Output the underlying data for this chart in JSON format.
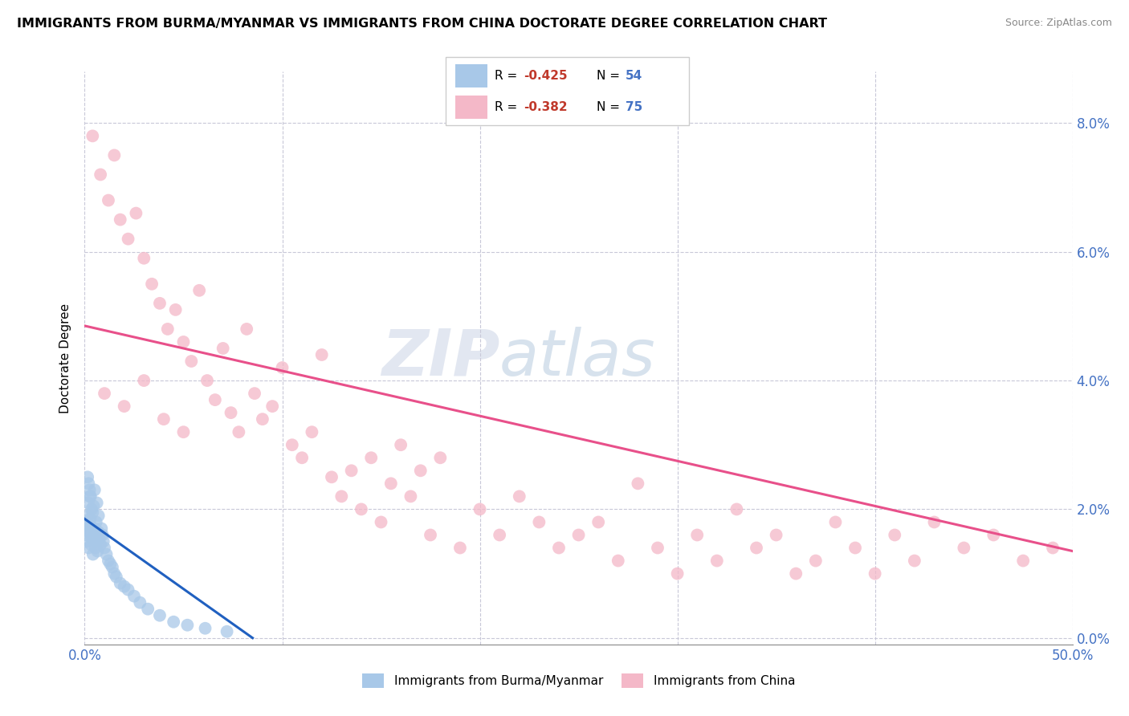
{
  "title": "IMMIGRANTS FROM BURMA/MYANMAR VS IMMIGRANTS FROM CHINA DOCTORATE DEGREE CORRELATION CHART",
  "source": "Source: ZipAtlas.com",
  "ylabel": "Doctorate Degree",
  "xlim": [
    0.0,
    50.0
  ],
  "ylim": [
    -0.1,
    8.8
  ],
  "legend_blue_r": "R = -0.425",
  "legend_blue_n": "N = 54",
  "legend_pink_r": "R = -0.382",
  "legend_pink_n": "N = 75",
  "label_blue": "Immigrants from Burma/Myanmar",
  "label_pink": "Immigrants from China",
  "blue_color": "#a8c8e8",
  "pink_color": "#f4b8c8",
  "line_blue_color": "#2060c0",
  "line_pink_color": "#e8508a",
  "watermark_zip": "ZIP",
  "watermark_atlas": "atlas",
  "grid_color": "#c8c8d8",
  "yticks": [
    0,
    2,
    4,
    6,
    8
  ],
  "xticks_major": [
    0,
    10,
    20,
    30,
    40,
    50
  ],
  "blue_line_x": [
    0.0,
    8.5
  ],
  "blue_line_y": [
    1.85,
    0.0
  ],
  "pink_line_x": [
    0.0,
    50.0
  ],
  "pink_line_y": [
    4.85,
    1.35
  ],
  "scatter_blue_x": [
    0.05,
    0.08,
    0.1,
    0.12,
    0.15,
    0.18,
    0.2,
    0.22,
    0.25,
    0.28,
    0.3,
    0.33,
    0.35,
    0.38,
    0.4,
    0.42,
    0.45,
    0.48,
    0.5,
    0.52,
    0.55,
    0.58,
    0.6,
    0.62,
    0.65,
    0.68,
    0.7,
    0.75,
    0.8,
    0.85,
    0.9,
    0.95,
    1.0,
    1.1,
    1.2,
    1.3,
    1.4,
    1.5,
    1.6,
    1.8,
    2.0,
    2.2,
    2.5,
    2.8,
    3.2,
    3.8,
    4.5,
    5.2,
    6.1,
    7.2,
    0.15,
    0.2,
    0.25,
    0.3
  ],
  "scatter_blue_y": [
    1.6,
    1.5,
    1.8,
    1.7,
    1.9,
    2.1,
    1.4,
    1.65,
    2.2,
    1.85,
    1.75,
    1.45,
    2.0,
    1.55,
    1.95,
    1.3,
    2.05,
    1.6,
    2.3,
    1.7,
    1.4,
    1.8,
    1.5,
    2.1,
    1.35,
    1.65,
    1.9,
    1.55,
    1.45,
    1.7,
    1.6,
    1.5,
    1.4,
    1.3,
    1.2,
    1.15,
    1.1,
    1.0,
    0.95,
    0.85,
    0.8,
    0.75,
    0.65,
    0.55,
    0.45,
    0.35,
    0.25,
    0.2,
    0.15,
    0.1,
    2.5,
    2.4,
    2.3,
    2.2
  ],
  "scatter_pink_x": [
    0.4,
    0.8,
    1.2,
    1.5,
    1.8,
    2.2,
    2.6,
    3.0,
    3.4,
    3.8,
    4.2,
    4.6,
    5.0,
    5.4,
    5.8,
    6.2,
    6.6,
    7.0,
    7.4,
    7.8,
    8.2,
    8.6,
    9.0,
    9.5,
    10.0,
    10.5,
    11.0,
    11.5,
    12.0,
    12.5,
    13.0,
    13.5,
    14.0,
    14.5,
    15.0,
    15.5,
    16.0,
    16.5,
    17.0,
    17.5,
    18.0,
    19.0,
    20.0,
    21.0,
    22.0,
    23.0,
    24.0,
    25.0,
    26.0,
    27.0,
    28.0,
    29.0,
    30.0,
    31.0,
    32.0,
    33.0,
    34.0,
    35.0,
    36.0,
    37.0,
    38.0,
    39.0,
    40.0,
    41.0,
    42.0,
    43.0,
    44.5,
    46.0,
    47.5,
    49.0,
    1.0,
    2.0,
    3.0,
    4.0,
    5.0
  ],
  "scatter_pink_y": [
    7.8,
    7.2,
    6.8,
    7.5,
    6.5,
    6.2,
    6.6,
    5.9,
    5.5,
    5.2,
    4.8,
    5.1,
    4.6,
    4.3,
    5.4,
    4.0,
    3.7,
    4.5,
    3.5,
    3.2,
    4.8,
    3.8,
    3.4,
    3.6,
    4.2,
    3.0,
    2.8,
    3.2,
    4.4,
    2.5,
    2.2,
    2.6,
    2.0,
    2.8,
    1.8,
    2.4,
    3.0,
    2.2,
    2.6,
    1.6,
    2.8,
    1.4,
    2.0,
    1.6,
    2.2,
    1.8,
    1.4,
    1.6,
    1.8,
    1.2,
    2.4,
    1.4,
    1.0,
    1.6,
    1.2,
    2.0,
    1.4,
    1.6,
    1.0,
    1.2,
    1.8,
    1.4,
    1.0,
    1.6,
    1.2,
    1.8,
    1.4,
    1.6,
    1.2,
    1.4,
    3.8,
    3.6,
    4.0,
    3.4,
    3.2
  ]
}
